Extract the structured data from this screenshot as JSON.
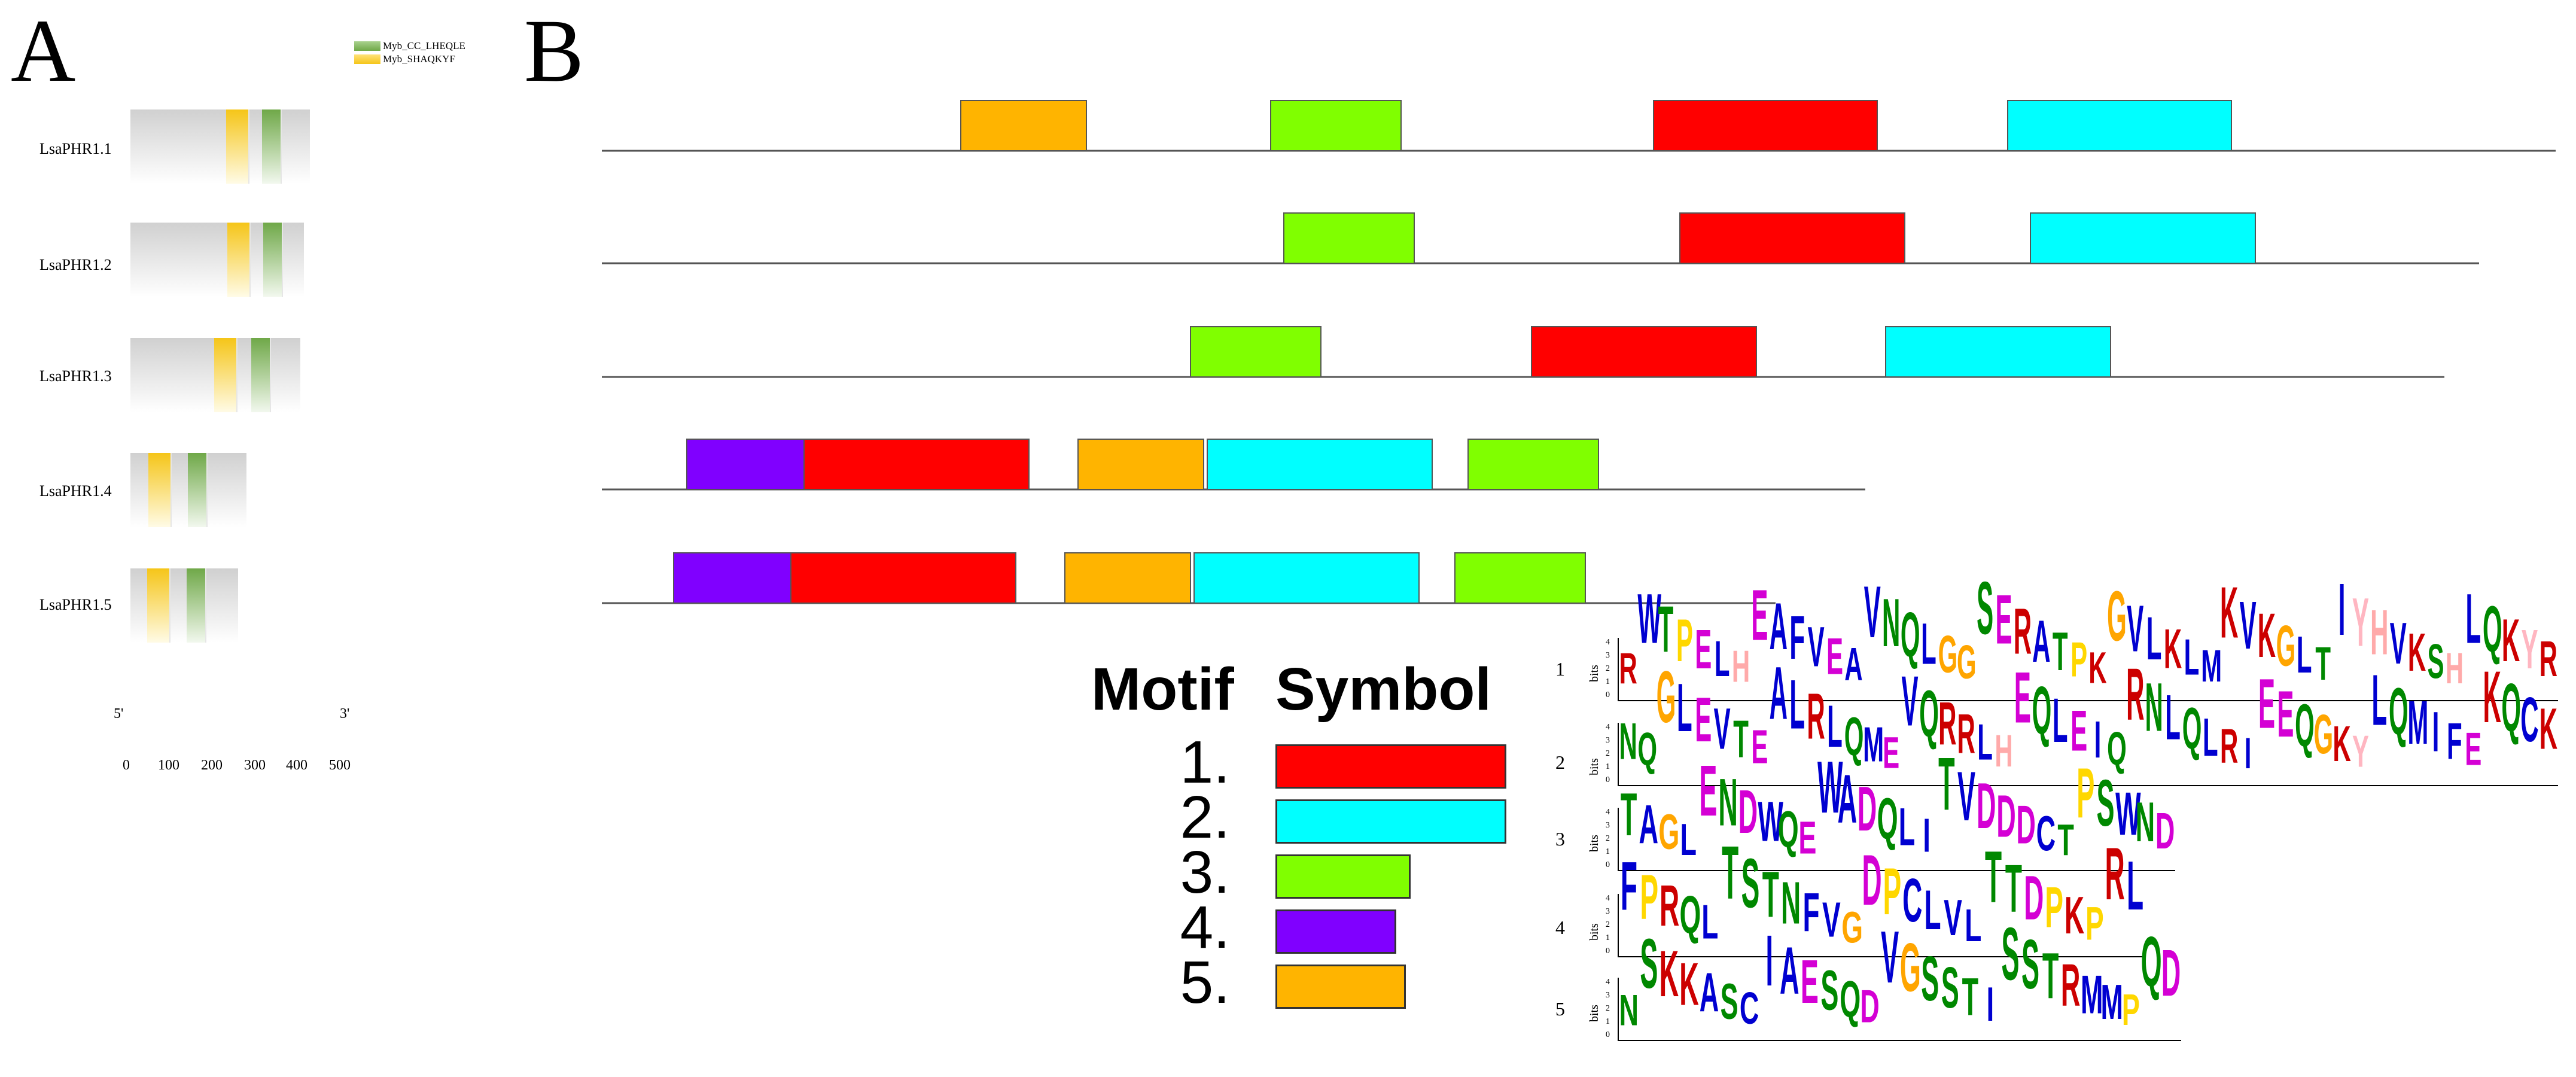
{
  "panels": {
    "a": "A",
    "b": "B"
  },
  "domain_legend": [
    {
      "label": "Myb_CC_LHEQLE",
      "color": "#7ab648"
    },
    {
      "label": "Myb_SHAQKYF",
      "color": "#f5c518"
    }
  ],
  "genes": [
    {
      "name": "LsaPHR1.1"
    },
    {
      "name": "LsaPHR1.2"
    },
    {
      "name": "LsaPHR1.3"
    },
    {
      "name": "LsaPHR1.4"
    },
    {
      "name": "LsaPHR1.5"
    }
  ],
  "scale": {
    "five_prime": "5'",
    "three_prime": "3'",
    "ticks": [
      "0",
      "100",
      "200",
      "300",
      "400",
      "500"
    ]
  },
  "motif_legend": {
    "header_motif": "Motif",
    "header_symbol": "Symbol",
    "items": [
      {
        "num": "1.",
        "color": "#ff0000"
      },
      {
        "num": "2.",
        "color": "#00ffff"
      },
      {
        "num": "3.",
        "color": "#80ff00"
      },
      {
        "num": "4.",
        "color": "#8000ff"
      },
      {
        "num": "5.",
        "color": "#ffb400"
      }
    ]
  },
  "logos": {
    "axis_label": "bits",
    "axis_ticks": [
      "4",
      "3",
      "2",
      "1",
      "0"
    ],
    "rows": [
      {
        "num": "1",
        "sequence": "RWTPELHEAFVEAVNQLGGSERATPKGVLKLMKVKGLTIYHVKSHLQKYR"
      },
      {
        "num": "2",
        "sequence": "NQGLEVTEALRLQMEVQRRLHEQLEIQRNLQLRIEEQGKYLQMIFEKQCK"
      },
      {
        "num": "3",
        "sequence": "TAGLENDWQEWADQLITVDDDCTPSWND"
      },
      {
        "num": "4",
        "sequence": "FPRQLTSTNFVGDPCLVLTTDPKPRL"
      },
      {
        "num": "5",
        "sequence": "NSKKASCIAESQDVGSSTISSTRMMPQD"
      }
    ]
  }
}
